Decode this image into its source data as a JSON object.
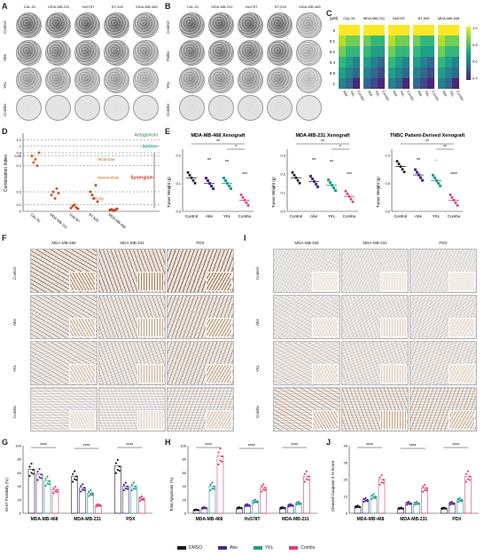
{
  "panels": {
    "A": "A",
    "B": "B",
    "C": "C",
    "D": "D",
    "E": "E",
    "F": "F",
    "G": "G",
    "H": "H",
    "I": "I",
    "J": "J"
  },
  "cell_lines": [
    "CAL-51",
    "MDA-MB-231",
    "Hs578T",
    "BT-549",
    "MDA-MB-468"
  ],
  "panelA_rows": [
    "Control",
    "Abe",
    "YKL",
    "Combo"
  ],
  "panelB_rows": [
    "Control",
    "Palbo",
    "YKL",
    "Combo"
  ],
  "panelC": {
    "unit": "(µM)",
    "doses": [
      "0",
      "0.1",
      "0.2",
      "0.4",
      "0.8",
      "1"
    ],
    "drugs": [
      "Abe",
      "YKL",
      "Combo"
    ],
    "colorbar_label": "Survival Fraction",
    "colorbar_ticks": [
      "1.0",
      "0.8",
      "0.6",
      "0.4"
    ]
  },
  "panelD": {
    "ylabel": "Combination Index",
    "yticks": [
      "0",
      "0.1",
      "0.3",
      "0.7",
      "0.85",
      "0.9",
      "1",
      "1.1"
    ],
    "zones": {
      "antagonism": "Antagonism",
      "additive": "Additive",
      "moderate": "Moderate",
      "intermediate": "Intermediate",
      "synergism": "Synergism",
      "strong": "Strong"
    },
    "categories": [
      "CAL-51",
      "MDA-MB-231",
      "Hs578T",
      "BT-549",
      "MDA-MB-468"
    ]
  },
  "panelE": {
    "ylabel": "Tumor Weight (g)",
    "charts": [
      {
        "title": "MDA-MB-468 Xenograft",
        "yticks": [
          "0.0",
          "0.1",
          "0.2"
        ],
        "sig": [
          "**",
          "*",
          "ns",
          "ns",
          "***"
        ]
      },
      {
        "title": "MDA-MB-231 Xenograft",
        "yticks": [
          "0.0",
          "0.1",
          "0.2",
          "0.3"
        ],
        "sig": [
          "**",
          "*",
          "ns",
          "ns",
          "***"
        ]
      },
      {
        "title": "TNBC Patient-Derived Xenograft",
        "yticks": [
          "0.0",
          "0.5",
          "1.0"
        ],
        "sig": [
          "**",
          "**",
          "ns",
          "*",
          "****"
        ]
      }
    ],
    "xcats": [
      "Control",
      "Abe",
      "YKL",
      "Combo"
    ]
  },
  "panelF": {
    "cols": [
      "MDA-MB-468",
      "MDA-MB-231",
      "PDX"
    ],
    "rows": [
      "Control",
      "Abe",
      "YKL",
      "Combo"
    ]
  },
  "panelI": {
    "cols": [
      "MDA-MB-468",
      "MDA-MB-231",
      "PDX"
    ],
    "rows": [
      "Control",
      "Abe",
      "YKL",
      "Combo"
    ]
  },
  "panelG": {
    "ylabel": "Ki-67 Positivity (%)",
    "yticks": [
      "0",
      "20",
      "40",
      "60",
      "80",
      "100"
    ],
    "groups": [
      "MDA-MB-468",
      "MDA-MB-231",
      "PDX"
    ]
  },
  "panelH": {
    "ylabel": "Total Apoptosis (%)",
    "yticks": [
      "0",
      "20",
      "40",
      "60",
      "80",
      "100"
    ],
    "groups": [
      "MDA-MB-468",
      "Hs578T",
      "MDA-MB-231"
    ]
  },
  "panelJ": {
    "ylabel": "Cleaved Caspase-3 H-Score",
    "yticks": [
      "0",
      "10",
      "20",
      "30",
      "40"
    ],
    "groups": [
      "MDA-MB-468",
      "MDA-MB-231",
      "PDX"
    ]
  },
  "legend": [
    {
      "label": "DMSO",
      "color": "#1a1a1a"
    },
    {
      "label": "Abe",
      "color": "#4b2a86"
    },
    {
      "label": "YKL",
      "color": "#1f9e8c"
    },
    {
      "label": "Combo",
      "color": "#e0407a"
    }
  ],
  "chart_data": [
    {
      "type": "bar",
      "title": "Ki-67 Positivity",
      "categories": [
        "MDA-MB-468",
        "MDA-MB-231",
        "PDX"
      ],
      "series": [
        {
          "name": "DMSO",
          "values": [
            65,
            55,
            70
          ]
        },
        {
          "name": "Abe",
          "values": [
            58,
            38,
            40
          ]
        },
        {
          "name": "YKL",
          "values": [
            48,
            30,
            40
          ]
        },
        {
          "name": "Combo",
          "values": [
            35,
            12,
            22
          ]
        }
      ],
      "ylabel": "Ki-67 Positivity (%)",
      "ylim": [
        0,
        100
      ]
    },
    {
      "type": "bar",
      "title": "Total Apoptosis",
      "categories": [
        "MDA-MB-468",
        "Hs578T",
        "MDA-MB-231"
      ],
      "series": [
        {
          "name": "DMSO",
          "values": [
            5,
            8,
            8
          ]
        },
        {
          "name": "Abe",
          "values": [
            8,
            12,
            12
          ]
        },
        {
          "name": "YKL",
          "values": [
            40,
            18,
            15
          ]
        },
        {
          "name": "Combo",
          "values": [
            85,
            38,
            55
          ]
        }
      ],
      "ylabel": "Total Apoptosis (%)",
      "ylim": [
        0,
        100
      ]
    },
    {
      "type": "bar",
      "title": "Cleaved Caspase-3",
      "categories": [
        "MDA-MB-468",
        "MDA-MB-231",
        "PDX"
      ],
      "series": [
        {
          "name": "DMSO",
          "values": [
            4,
            3,
            3
          ]
        },
        {
          "name": "Abe",
          "values": [
            8,
            6,
            6
          ]
        },
        {
          "name": "YKL",
          "values": [
            10,
            6,
            8
          ]
        },
        {
          "name": "Combo",
          "values": [
            20,
            15,
            22
          ]
        }
      ],
      "ylabel": "Cleaved Caspase-3 H-Score",
      "ylim": [
        0,
        40
      ]
    }
  ]
}
